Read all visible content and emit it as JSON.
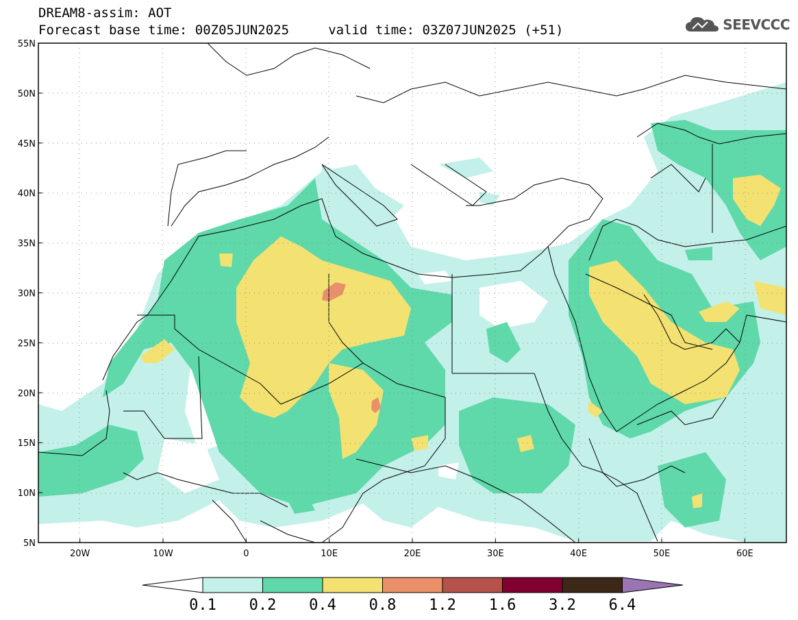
{
  "header": {
    "line1": "DREAM8-assim: AOT",
    "line2": "Forecast base time: 00Z05JUN2025     valid time: 03Z07JUN2025 (+51)"
  },
  "logo": {
    "text": "SEEVCCC",
    "icon": "cloud-icon"
  },
  "map": {
    "lon_range": [
      -25,
      65
    ],
    "lat_range": [
      5,
      55
    ],
    "y_ticks": [
      "55N",
      "50N",
      "45N",
      "40N",
      "35N",
      "30N",
      "25N",
      "20N",
      "15N",
      "10N",
      "5N"
    ],
    "x_ticks": [
      "20W",
      "10W",
      "0",
      "10E",
      "20E",
      "30E",
      "40E",
      "50E",
      "60E"
    ],
    "grid": "dotted"
  },
  "colorbar": {
    "labels": [
      "0.1",
      "0.2",
      "0.4",
      "0.8",
      "1.2",
      "1.6",
      "3.2",
      "6.4"
    ],
    "colors": [
      "#c4f0ea",
      "#5fd8aa",
      "#f3e271",
      "#e9906a",
      "#b5524a",
      "#800030",
      "#3c2818",
      "#9b74b4"
    ],
    "below_color": "#ffffff"
  }
}
